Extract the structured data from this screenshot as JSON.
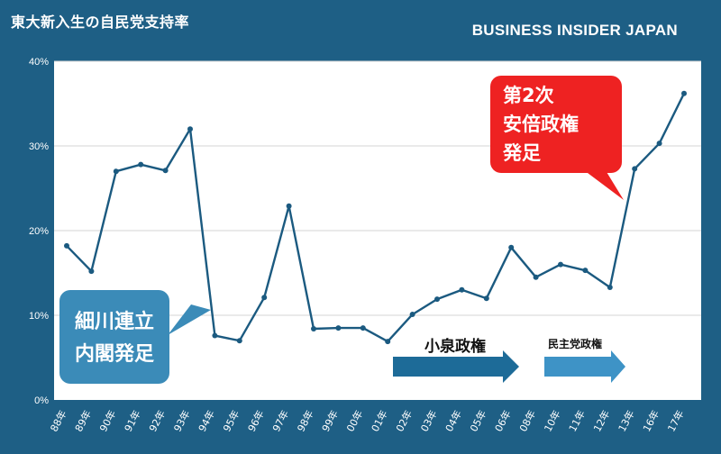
{
  "header": {
    "title": "東大新入生の自民党支持率",
    "brand": "BUSINESS INSIDER JAPAN"
  },
  "chart_data": {
    "type": "line",
    "title": "東大新入生の自民党支持率",
    "xlabel": "",
    "ylabel": "",
    "ylim": [
      0,
      40
    ],
    "yticks": [
      "0%",
      "10%",
      "20%",
      "30%",
      "40%"
    ],
    "categories": [
      "88年",
      "89年",
      "90年",
      "91年",
      "92年",
      "93年",
      "94年",
      "95年",
      "96年",
      "97年",
      "98年",
      "99年",
      "00年",
      "01年",
      "02年",
      "03年",
      "04年",
      "05年",
      "06年",
      "08年",
      "10年",
      "11年",
      "12年",
      "13年",
      "16年",
      "17年"
    ],
    "values": [
      18.2,
      15.2,
      27.0,
      27.8,
      27.1,
      32.0,
      7.6,
      7.0,
      12.1,
      22.9,
      8.4,
      8.5,
      8.5,
      6.9,
      10.1,
      11.9,
      13.0,
      12.0,
      18.0,
      14.5,
      16.0,
      15.3,
      13.3,
      27.3,
      30.3,
      36.2
    ],
    "grid": true,
    "annotations": {
      "hosokawa": [
        "細川連立",
        "内閣発足"
      ],
      "abe": [
        "第2次",
        "安倍政権",
        "発足"
      ],
      "koizumi": "小泉政権",
      "minshu": "民主党政権"
    },
    "colors": {
      "background": "#1e5f85",
      "line": "#1b5a80",
      "callout_blue": "#3b8bb8",
      "callout_red": "#ee2222",
      "arrow": "#1d6b98",
      "arrow_light": "#3e93c6"
    }
  }
}
